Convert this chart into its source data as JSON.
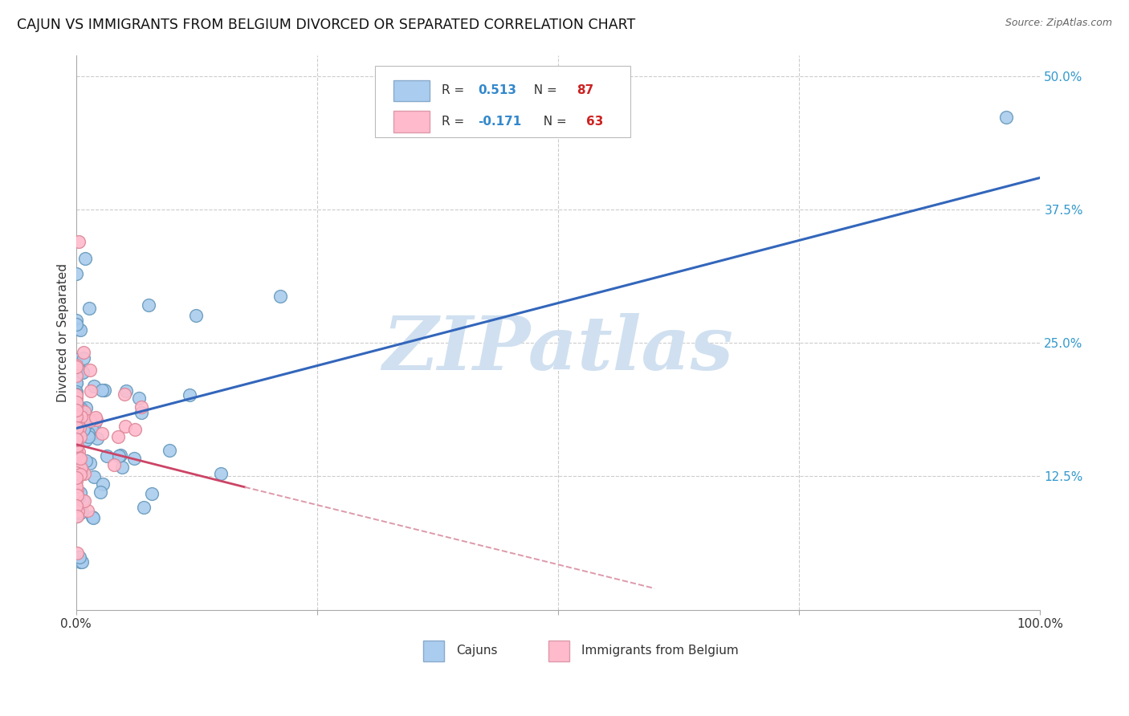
{
  "title": "CAJUN VS IMMIGRANTS FROM BELGIUM DIVORCED OR SEPARATED CORRELATION CHART",
  "source": "Source: ZipAtlas.com",
  "ylabel": "Divorced or Separated",
  "xlim": [
    0,
    1.0
  ],
  "ylim": [
    0,
    0.52
  ],
  "legend_color1_face": "#aaccee",
  "legend_color1_edge": "#88aacc",
  "legend_color2_face": "#ffbbcc",
  "legend_color2_edge": "#dd99aa",
  "scatter1_face": "#aaccee",
  "scatter1_edge": "#6699bb",
  "scatter2_face": "#ffbbcc",
  "scatter2_edge": "#dd8899",
  "line1_color": "#3366bb",
  "line2_color": "#cc4466",
  "line2_dash_color": "#dd99aa",
  "watermark": "ZIPatlas",
  "watermark_color": "#d0e0f0",
  "background_color": "#ffffff",
  "grid_color": "#cccccc",
  "R1": 0.513,
  "N1": 87,
  "R2": -0.171,
  "N2": 63,
  "line1_x0": 0.0,
  "line1_y0": 0.17,
  "line1_x1": 1.0,
  "line1_y1": 0.405,
  "line2_solid_x0": 0.0,
  "line2_solid_y0": 0.155,
  "line2_solid_x1": 0.175,
  "line2_solid_y1": 0.115,
  "line2_dash_x0": 0.175,
  "line2_dash_y0": 0.115,
  "line2_dash_x1": 0.6,
  "line2_dash_y1": 0.02,
  "ytick_color": "#3399cc",
  "title_color": "#111111",
  "source_color": "#666666",
  "label_color": "#333333"
}
